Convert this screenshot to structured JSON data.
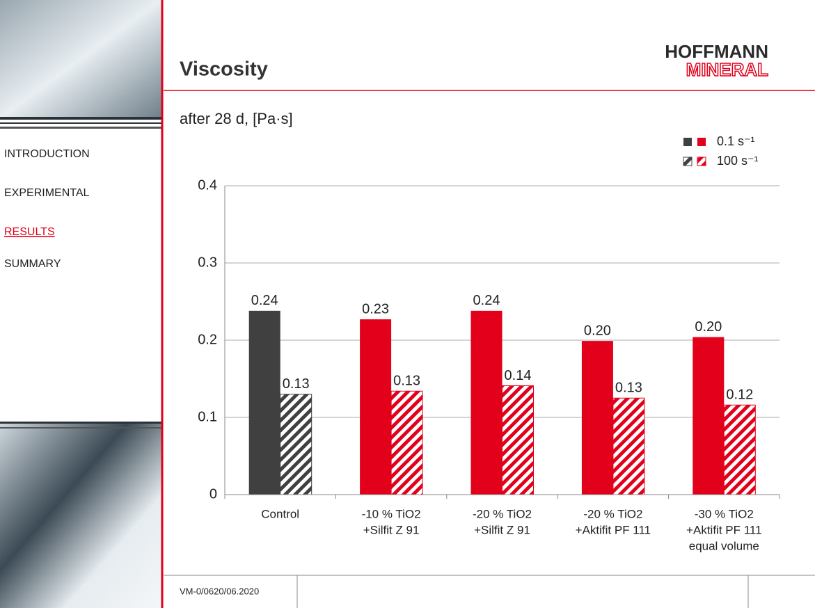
{
  "nav": [
    "INTRODUCTION",
    "EXPERIMENTAL",
    "RESULTS",
    "SUMMARY"
  ],
  "active_nav": 2,
  "header": {
    "title": "Viscosity",
    "logo": [
      "HOFFMANN",
      "MINERAL"
    ]
  },
  "footer": {
    "code": "VM-0/0620/06.2020"
  },
  "chart_data": {
    "type": "bar",
    "subtitle": "after 28 d, [Pa·s]",
    "categories": [
      [
        "Control"
      ],
      [
        "-10 % TiO2",
        "+Silfit Z 91"
      ],
      [
        "-20 % TiO2",
        "+Silfit Z 91"
      ],
      [
        "-20 % TiO2",
        "+Aktifit PF 111"
      ],
      [
        "-30 % TiO2",
        "+Aktifit PF 111",
        "equal volume"
      ]
    ],
    "series": [
      {
        "name": "0.1 s⁻¹",
        "colors": [
          "#404040",
          "#e2001a",
          "#e2001a",
          "#e2001a",
          "#e2001a"
        ],
        "hatch": false,
        "values": [
          0.238,
          0.227,
          0.238,
          0.199,
          0.204
        ],
        "value_labels": [
          "0.24",
          "0.23",
          "0.24",
          "0.20",
          "0.20"
        ]
      },
      {
        "name": "100 s⁻¹",
        "colors": [
          "#404040",
          "#e2001a",
          "#e2001a",
          "#e2001a",
          "#e2001a"
        ],
        "hatch": true,
        "values": [
          0.13,
          0.134,
          0.141,
          0.125,
          0.116
        ],
        "value_labels": [
          "0.13",
          "0.13",
          "0.14",
          "0.13",
          "0.12"
        ]
      }
    ],
    "ylim": [
      0,
      0.4
    ],
    "yticks": [
      0,
      0.1,
      0.2,
      0.3,
      0.4
    ],
    "grid": true,
    "legend": "top-right"
  }
}
